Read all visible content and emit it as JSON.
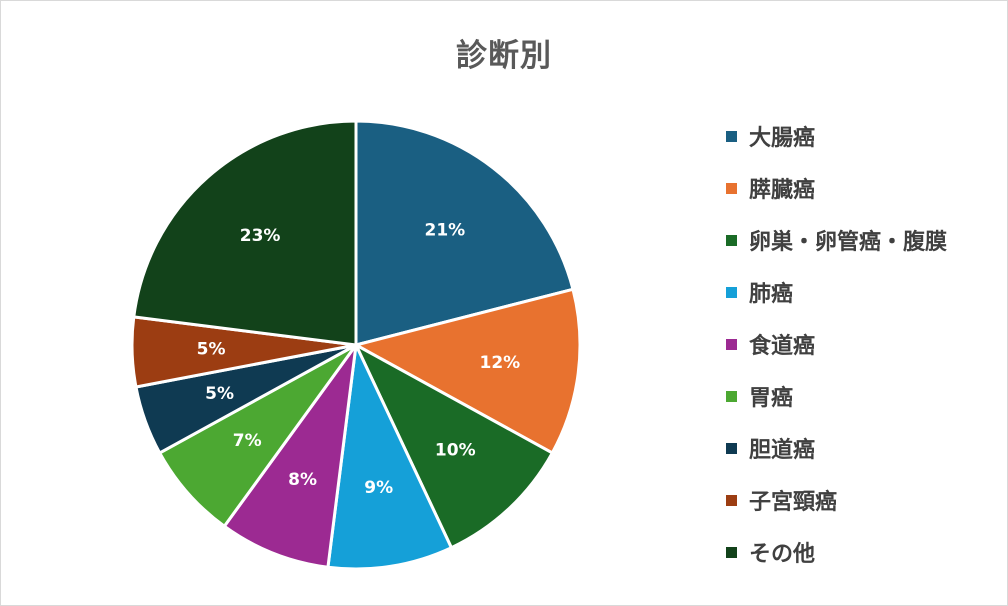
{
  "chart_data": {
    "type": "pie",
    "title": "診断別",
    "legend_position": "right",
    "slices": [
      {
        "label": "大腸癌",
        "value": 21,
        "display": "21%",
        "color": "#1a5f82"
      },
      {
        "label": "膵臓癌",
        "value": 12,
        "display": "12%",
        "color": "#e8722f"
      },
      {
        "label": "卵巣・卵管癌・腹膜",
        "value": 10,
        "display": "10%",
        "color": "#1a6b26"
      },
      {
        "label": "肺癌",
        "value": 9,
        "display": "9%",
        "color": "#15a0d8"
      },
      {
        "label": "食道癌",
        "value": 8,
        "display": "8%",
        "color": "#9c2a92"
      },
      {
        "label": "胃癌",
        "value": 7,
        "display": "7%",
        "color": "#4ca832"
      },
      {
        "label": "胆道癌",
        "value": 5,
        "display": "5%",
        "color": "#0f3a52"
      },
      {
        "label": "子宮頸癌",
        "value": 5,
        "display": "5%",
        "color": "#9c3d12"
      },
      {
        "label": "その他",
        "value": 23,
        "display": "23%",
        "color": "#12421a"
      }
    ]
  }
}
